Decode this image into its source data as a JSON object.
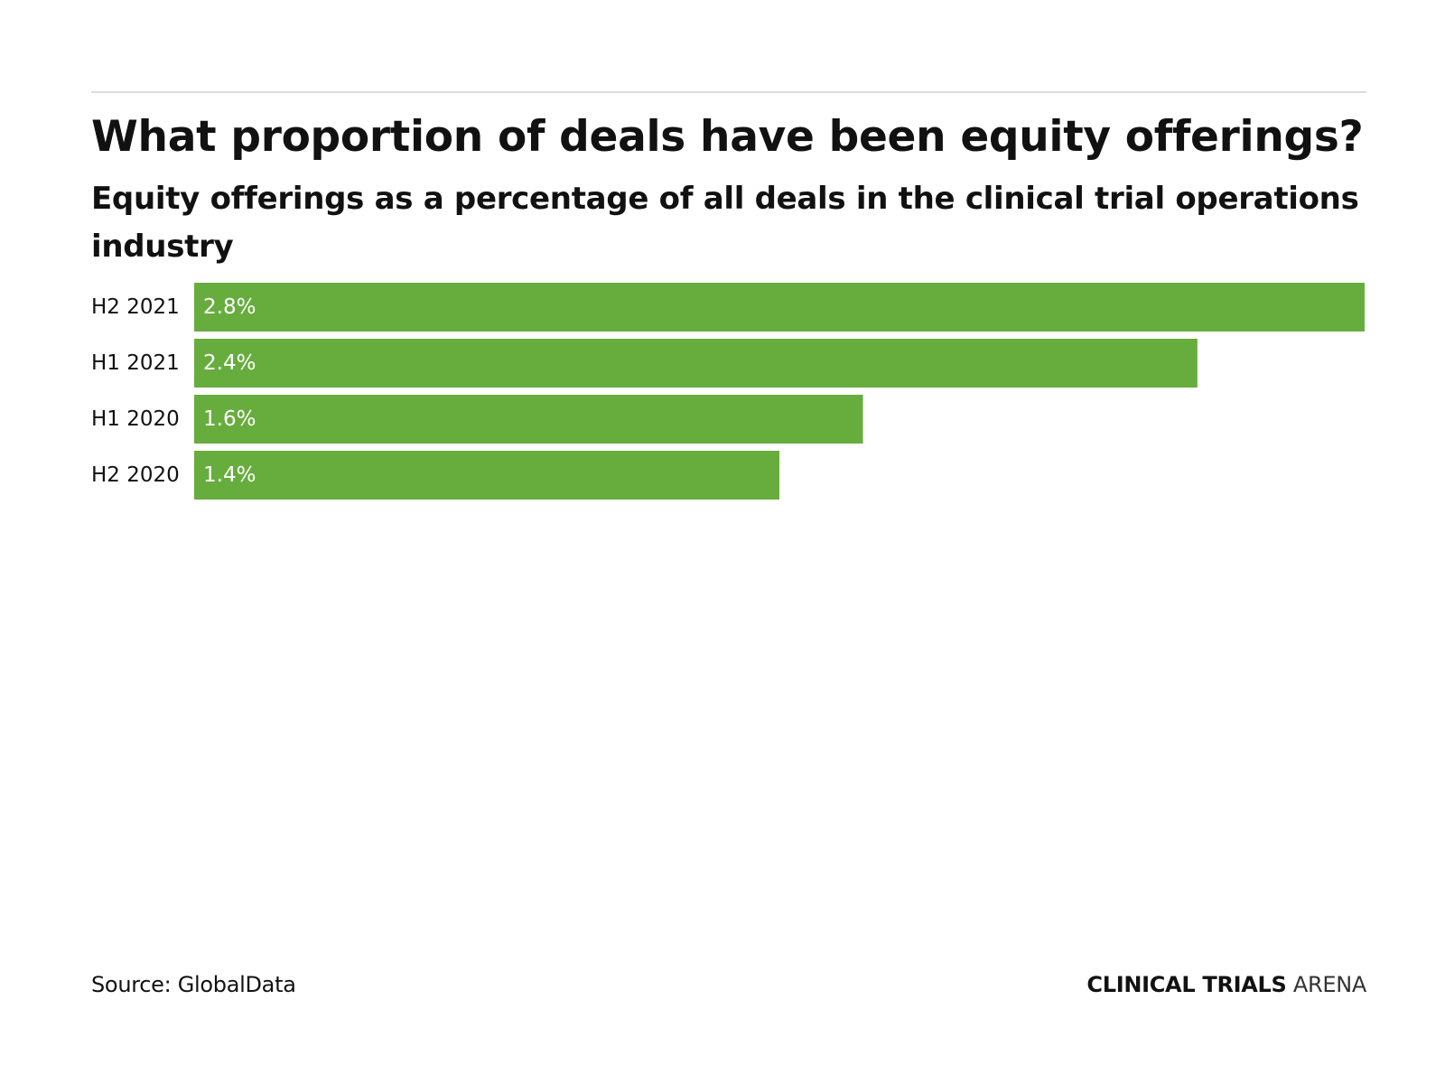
{
  "title": "What proportion of deals have been equity offerings?",
  "subtitle": "Equity offerings as a percentage of all deals in the clinical trial operations industry",
  "source": "Source: GlobalData",
  "brand": {
    "bold": "CLINICAL TRIALS",
    "light": "ARENA"
  },
  "colors": {
    "bar": "#67ad3e"
  },
  "chart_data": {
    "type": "bar",
    "orientation": "horizontal",
    "categories": [
      "H2 2021",
      "H1 2021",
      "H1 2020",
      "H2 2020"
    ],
    "values": [
      2.8,
      2.4,
      1.6,
      1.4
    ],
    "value_labels": [
      "2.8%",
      "2.4%",
      "1.6%",
      "1.4%"
    ],
    "unit": "%",
    "title": "What proportion of deals have been equity offerings?",
    "subtitle": "Equity offerings as a percentage of all deals in the clinical trial operations industry",
    "xlabel": "",
    "ylabel": "",
    "xlim": [
      0,
      2.8
    ],
    "grid": false,
    "legend": "none"
  }
}
